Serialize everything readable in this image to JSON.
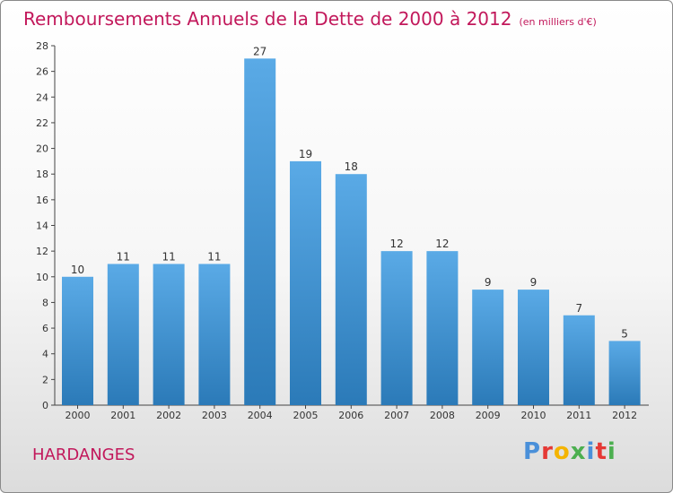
{
  "title": "Remboursements Annuels de la Dette de 2000 à 2012",
  "subtitle": "(en milliers d'€)",
  "place": "HARDANGES",
  "logo": {
    "letters": [
      "P",
      "r",
      "o",
      "x",
      "i",
      "t",
      "i"
    ],
    "colors": [
      "#4a90d9",
      "#e53935",
      "#f4b400",
      "#4caf50",
      "#4a90d9",
      "#e53935",
      "#4caf50"
    ]
  },
  "colors": {
    "bar_top": "#5aaae6",
    "bar_bottom": "#2b7ab8",
    "accent": "#c2185b"
  },
  "chart_data": {
    "type": "bar",
    "categories": [
      "2000",
      "2001",
      "2002",
      "2003",
      "2004",
      "2005",
      "2006",
      "2007",
      "2008",
      "2009",
      "2010",
      "2011",
      "2012"
    ],
    "values": [
      10,
      11,
      11,
      11,
      27,
      19,
      18,
      12,
      12,
      9,
      9,
      7,
      5
    ],
    "data_labels": [
      "10",
      "11",
      "11",
      "11",
      "27",
      "19",
      "18",
      "12",
      "12",
      "9",
      "9",
      "7",
      "5"
    ],
    "yticks": [
      "0",
      "2",
      "4",
      "6",
      "8",
      "10",
      "12",
      "14",
      "16",
      "18",
      "20",
      "22",
      "24",
      "26",
      "28"
    ],
    "ylim": [
      0,
      28
    ],
    "grid": false,
    "legend": false
  }
}
